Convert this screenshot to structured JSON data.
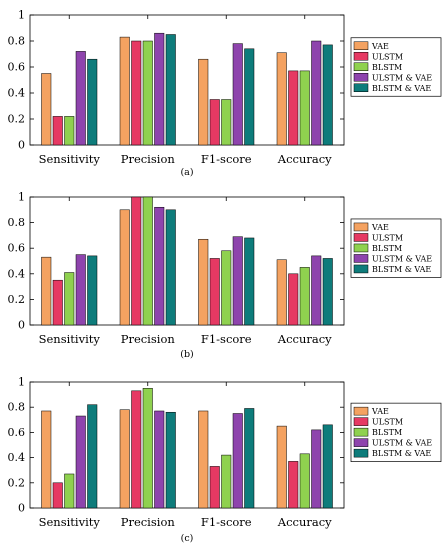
{
  "colors": {
    "VAE": "#F4A261",
    "ULSTM": "#E63963",
    "BLSTM": "#8FD14F",
    "ULSTM & VAE": "#8E44AD",
    "BLSTM & VAE": "#0E7C7B"
  },
  "chart_data": [
    {
      "type": "bar",
      "panel_label": "(a)",
      "categories": [
        "Sensitivity",
        "Precision",
        "F1-score",
        "Accuracy"
      ],
      "ylim": [
        0,
        1
      ],
      "yticks": [
        0,
        0.2,
        0.4,
        0.6,
        0.8,
        1
      ],
      "ytick_labels": [
        "0",
        "0.2",
        "0.4",
        "0.6",
        "0.8",
        "1"
      ],
      "legend_position": "right",
      "series": [
        {
          "name": "VAE",
          "values": [
            0.55,
            0.83,
            0.66,
            0.71
          ]
        },
        {
          "name": "ULSTM",
          "values": [
            0.22,
            0.8,
            0.35,
            0.57
          ]
        },
        {
          "name": "BLSTM",
          "values": [
            0.22,
            0.8,
            0.35,
            0.57
          ]
        },
        {
          "name": "ULSTM & VAE",
          "values": [
            0.72,
            0.86,
            0.78,
            0.8
          ]
        },
        {
          "name": "BLSTM & VAE",
          "values": [
            0.66,
            0.85,
            0.74,
            0.77
          ]
        }
      ]
    },
    {
      "type": "bar",
      "panel_label": "(b)",
      "categories": [
        "Sensitivity",
        "Precision",
        "F1-score",
        "Accuracy"
      ],
      "ylim": [
        0,
        1
      ],
      "yticks": [
        0,
        0.2,
        0.4,
        0.6,
        0.8,
        1
      ],
      "ytick_labels": [
        "0",
        "0.2",
        "0.4",
        "0.6",
        "0.8",
        "1"
      ],
      "legend_position": "right",
      "series": [
        {
          "name": "VAE",
          "values": [
            0.53,
            0.9,
            0.67,
            0.51
          ]
        },
        {
          "name": "ULSTM",
          "values": [
            0.35,
            1.0,
            0.52,
            0.4
          ]
        },
        {
          "name": "BLSTM",
          "values": [
            0.41,
            1.0,
            0.58,
            0.45
          ]
        },
        {
          "name": "ULSTM & VAE",
          "values": [
            0.55,
            0.92,
            0.69,
            0.54
          ]
        },
        {
          "name": "BLSTM & VAE",
          "values": [
            0.54,
            0.9,
            0.68,
            0.52
          ]
        }
      ]
    },
    {
      "type": "bar",
      "panel_label": "(c)",
      "categories": [
        "Sensitivity",
        "Precision",
        "F1-score",
        "Accuracy"
      ],
      "ylim": [
        0,
        1
      ],
      "yticks": [
        0,
        0.2,
        0.4,
        0.6,
        0.8,
        1
      ],
      "ytick_labels": [
        "0",
        "0.2",
        "0.4",
        "0.6",
        "0.8",
        "1"
      ],
      "legend_position": "right",
      "series": [
        {
          "name": "VAE",
          "values": [
            0.77,
            0.78,
            0.77,
            0.65
          ]
        },
        {
          "name": "ULSTM",
          "values": [
            0.2,
            0.93,
            0.33,
            0.37
          ]
        },
        {
          "name": "BLSTM",
          "values": [
            0.27,
            0.95,
            0.42,
            0.43
          ]
        },
        {
          "name": "ULSTM & VAE",
          "values": [
            0.73,
            0.77,
            0.75,
            0.62
          ]
        },
        {
          "name": "BLSTM & VAE",
          "values": [
            0.82,
            0.76,
            0.79,
            0.66
          ]
        }
      ]
    }
  ]
}
